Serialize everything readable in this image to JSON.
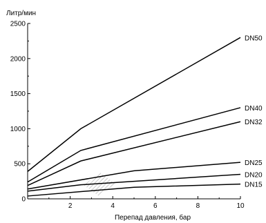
{
  "chart_data": {
    "type": "line",
    "title": "",
    "xlabel": "Перепад давления, бар",
    "ylabel": "Литр/мин",
    "xlim": [
      0,
      10
    ],
    "ylim": [
      0,
      2500
    ],
    "xticks": [
      2,
      4,
      6,
      8,
      10
    ],
    "yticks": [
      0,
      500,
      1000,
      1500,
      2000,
      2500
    ],
    "grid": false,
    "legend": "labels at line ends",
    "series": [
      {
        "name": "DN50",
        "x": [
          0,
          2.5,
          10
        ],
        "y": [
          390,
          1000,
          2300
        ]
      },
      {
        "name": "DN40",
        "x": [
          0,
          2.5,
          10
        ],
        "y": [
          240,
          690,
          1300
        ]
      },
      {
        "name": "DN32",
        "x": [
          0,
          2.5,
          10
        ],
        "y": [
          190,
          540,
          1100
        ]
      },
      {
        "name": "DN25",
        "x": [
          0,
          5,
          10
        ],
        "y": [
          140,
          400,
          520
        ]
      },
      {
        "name": "DN20",
        "x": [
          0,
          2.5,
          10
        ],
        "y": [
          110,
          200,
          350
        ]
      },
      {
        "name": "DN15",
        "x": [
          0,
          5,
          10
        ],
        "y": [
          40,
          165,
          210
        ]
      }
    ]
  }
}
